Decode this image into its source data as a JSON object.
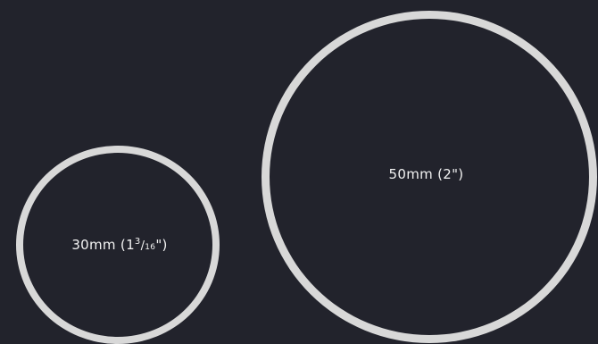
{
  "size_chart": {
    "small": {
      "metric": "30mm",
      "imperial_whole": "1",
      "imperial_numerator": "3",
      "imperial_denominator": "16"
    },
    "large": {
      "label": "50mm (2\")"
    }
  },
  "colors": {
    "background": "#22232c",
    "ring": "#d8d8d8",
    "text": "#f2f2f2"
  }
}
